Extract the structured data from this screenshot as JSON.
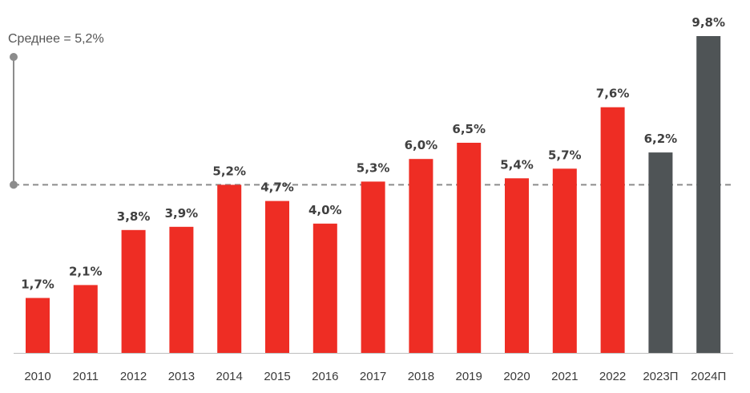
{
  "chart_data": {
    "type": "bar",
    "categories": [
      "2010",
      "2011",
      "2012",
      "2013",
      "2014",
      "2015",
      "2016",
      "2017",
      "2018",
      "2019",
      "2020",
      "2021",
      "2022",
      "2023П",
      "2024П"
    ],
    "values": [
      1.7,
      2.1,
      3.8,
      3.9,
      5.2,
      4.7,
      4.0,
      5.3,
      6.0,
      6.5,
      5.4,
      5.7,
      7.6,
      6.2,
      9.8
    ],
    "value_labels": [
      "1,7%",
      "2,1%",
      "3,8%",
      "3,9%",
      "5,2%",
      "4,7%",
      "4,0%",
      "5,3%",
      "6,0%",
      "6,5%",
      "5,4%",
      "5,7%",
      "7,6%",
      "6,2%",
      "9,8%"
    ],
    "forecast": [
      false,
      false,
      false,
      false,
      false,
      false,
      false,
      false,
      false,
      false,
      false,
      false,
      false,
      true,
      true
    ],
    "average": 5.2,
    "average_label": "Среднее = 5,2%",
    "ylim": [
      0,
      9.8
    ],
    "title": "",
    "xlabel": "",
    "ylabel": "",
    "colors": {
      "actual": "#ee2d24",
      "forecast": "#4f5456",
      "average_line": "#8c8c8c",
      "axis": "#bdbdbd"
    }
  }
}
